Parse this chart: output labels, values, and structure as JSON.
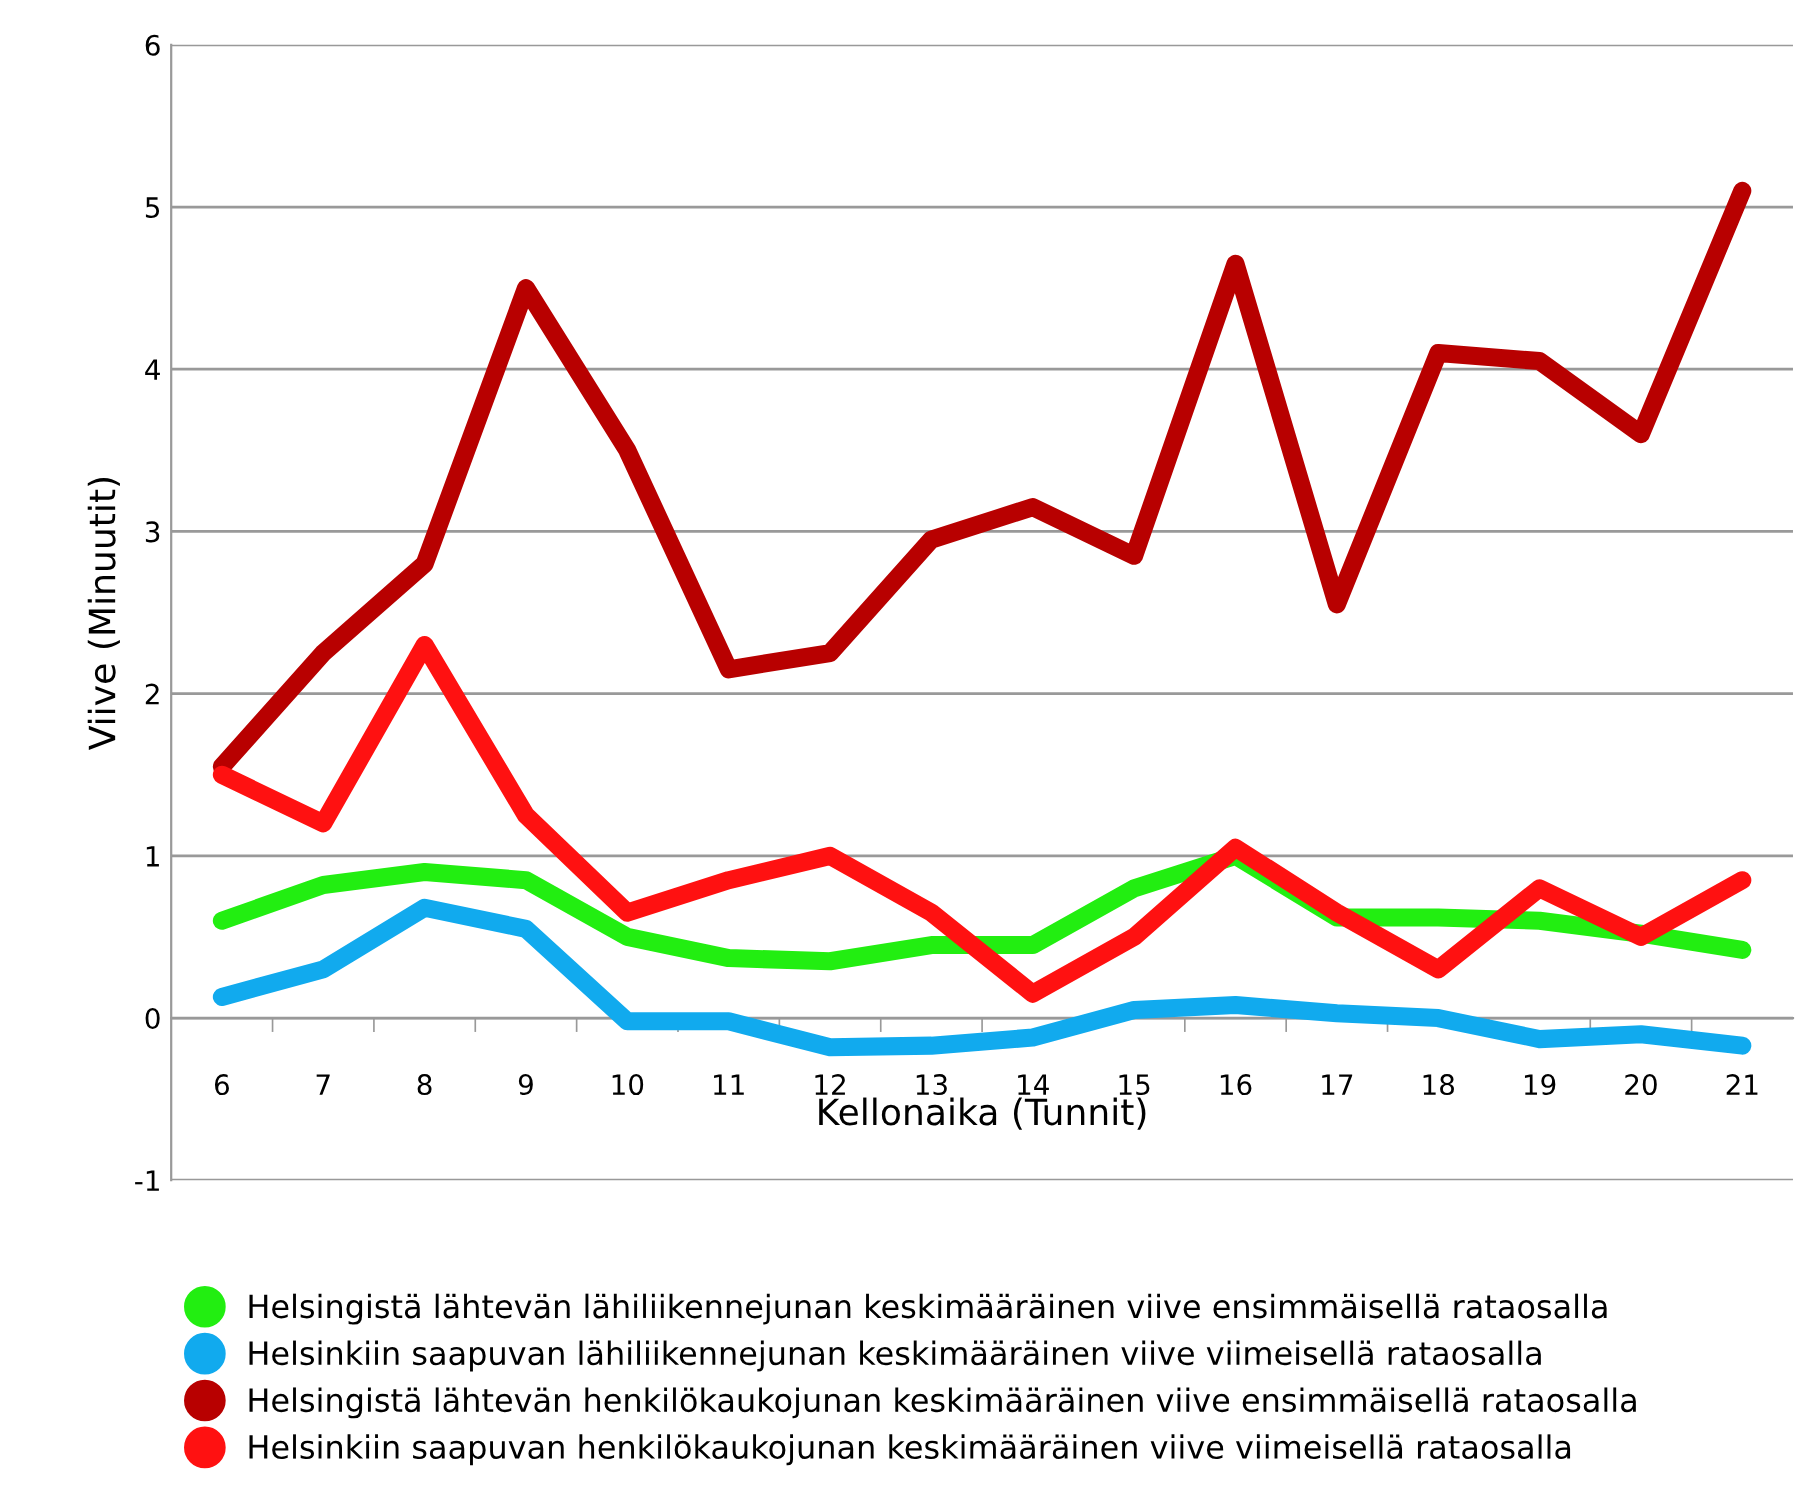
{
  "chart_data": {
    "type": "line",
    "xlabel": "Kellonaika (Tunnit)",
    "ylabel": "Viive (Minuutit)",
    "categories": [
      "6",
      "7",
      "8",
      "9",
      "10",
      "11",
      "12",
      "13",
      "14",
      "15",
      "16",
      "17",
      "18",
      "19",
      "20",
      "21"
    ],
    "ylim": [
      -1,
      6
    ],
    "yticks": [
      -1,
      0,
      1,
      2,
      3,
      4,
      5,
      6
    ],
    "grid": "y",
    "legend": "bottom",
    "marker": "none",
    "line_style": "solid",
    "series": [
      {
        "name": "Helsingistä lähtevän lähiliikennejunan keskimääräinen viive ensimmäisellä rataosalla",
        "color": "#22ee11",
        "values": [
          0.6,
          0.82,
          0.9,
          0.85,
          0.5,
          0.37,
          0.35,
          0.45,
          0.45,
          0.8,
          1.0,
          0.62,
          0.62,
          0.6,
          0.52,
          0.42
        ]
      },
      {
        "name": "Helsinkiin saapuvan lähiliikennejunan keskimääräinen viive viimeisellä rataosalla",
        "color": "#11aaee",
        "values": [
          0.13,
          0.3,
          0.68,
          0.55,
          -0.02,
          -0.02,
          -0.18,
          -0.17,
          -0.12,
          0.05,
          0.08,
          0.03,
          0.0,
          -0.13,
          -0.1,
          -0.17
        ]
      },
      {
        "name": "Helsingistä lähtevän henkilökaukojunan keskimääräinen viive ensimmäisellä rataosalla",
        "color": "#b80000",
        "values": [
          1.55,
          2.25,
          2.8,
          4.5,
          3.5,
          2.15,
          2.25,
          2.95,
          3.15,
          2.85,
          4.65,
          2.55,
          4.1,
          4.05,
          3.6,
          5.1
        ]
      },
      {
        "name": "Helsinkiin saapuvan henkilökaukojunan keskimääräinen viive viimeisellä rataosalla",
        "color": "#ff1111",
        "values": [
          1.5,
          1.2,
          2.3,
          1.25,
          0.65,
          0.85,
          1.0,
          0.65,
          0.15,
          0.5,
          1.05,
          0.65,
          0.3,
          0.8,
          0.5,
          0.85
        ]
      }
    ]
  }
}
